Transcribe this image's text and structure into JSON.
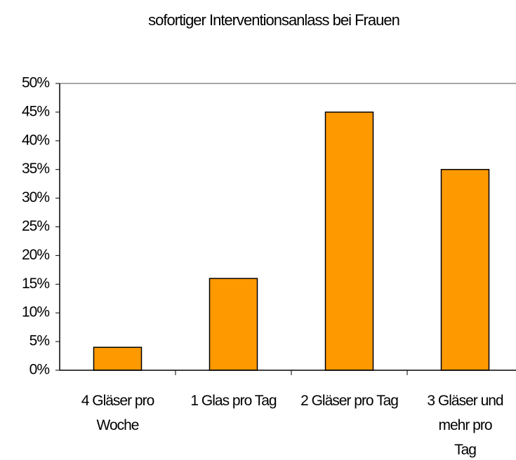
{
  "chart_data": {
    "type": "bar",
    "title": "sofortiger Interventionsanlass bei Frauen",
    "categories": [
      "4 Gläser pro Woche",
      "1 Glas pro Tag",
      "2 Gläser pro Tag",
      "3 Gläser und mehr pro Tag"
    ],
    "values": [
      4,
      16,
      45,
      35
    ],
    "color": "#ff9900",
    "ylim": [
      0,
      50
    ],
    "yticks": [
      {
        "value": 0,
        "label": "0%"
      },
      {
        "value": 5,
        "label": "5%"
      },
      {
        "value": 10,
        "label": "10%"
      },
      {
        "value": 15,
        "label": "15%"
      },
      {
        "value": 20,
        "label": "20%"
      },
      {
        "value": 25,
        "label": "25%"
      },
      {
        "value": 30,
        "label": "30%"
      },
      {
        "value": 35,
        "label": "35%"
      },
      {
        "value": 40,
        "label": "40%"
      },
      {
        "value": 45,
        "label": "45%"
      },
      {
        "value": 50,
        "label": "50%"
      }
    ],
    "grid": false
  }
}
